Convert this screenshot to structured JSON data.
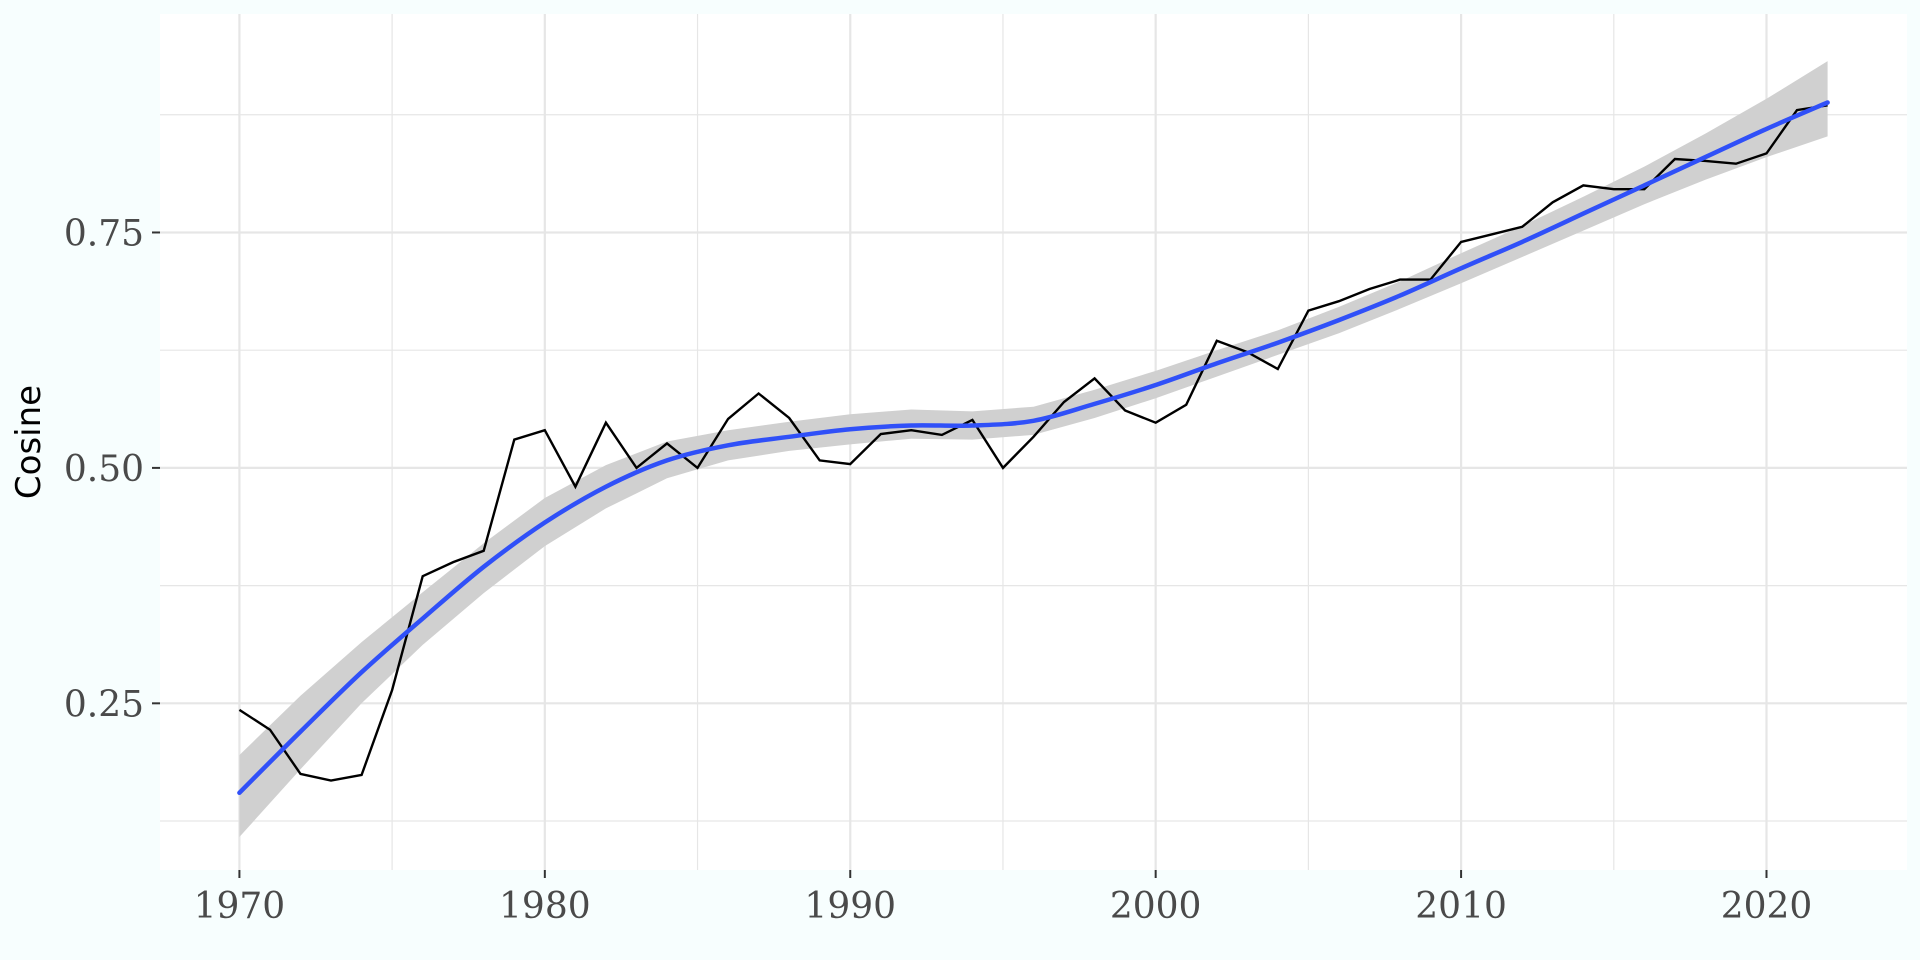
{
  "chart_data": {
    "type": "line",
    "title": "",
    "xlabel": "",
    "ylabel": "Cosine",
    "xlim": [
      1967.4,
      2024.6
    ],
    "ylim": [
      0.073,
      0.982
    ],
    "x_ticks": [
      1970,
      1980,
      1990,
      2000,
      2010,
      2020
    ],
    "x_tick_labels": [
      "1970",
      "1980",
      "1990",
      "2000",
      "2010",
      "2020"
    ],
    "y_ticks": [
      0.25,
      0.5,
      0.75
    ],
    "y_tick_labels": [
      "0.25",
      "0.50",
      "0.75"
    ],
    "grid": true,
    "legend": "none",
    "colors": {
      "background": "#f7fefe",
      "panel": "#ffffff",
      "grid": "#e6e6e6",
      "observed": "#000000",
      "smooth": "#3050f8",
      "ribbon": "#d0d0d0",
      "tick_text": "#4a4a4a"
    },
    "series": [
      {
        "type": "line",
        "x": [
          1970,
          1971,
          1972,
          1973,
          1974,
          1975,
          1976,
          1977,
          1978,
          1979,
          1980,
          1981,
          1982,
          1983,
          1984,
          1985,
          1986,
          1987,
          1988,
          1989,
          1990,
          1991,
          1992,
          1993,
          1994,
          1995,
          1996,
          1997,
          1998,
          1999,
          2000,
          2001,
          2002,
          2003,
          2004,
          2005,
          2006,
          2007,
          2008,
          2009,
          2010,
          2011,
          2012,
          2013,
          2014,
          2015,
          2016,
          2017,
          2018,
          2019,
          2020,
          2021,
          2022
        ],
        "y": [
          0.243,
          0.222,
          0.175,
          0.168,
          0.174,
          0.264,
          0.385,
          0.4,
          0.412,
          0.53,
          0.54,
          0.48,
          0.548,
          0.5,
          0.526,
          0.5,
          0.552,
          0.579,
          0.553,
          0.508,
          0.504,
          0.536,
          0.54,
          0.535,
          0.551,
          0.5,
          0.533,
          0.57,
          0.595,
          0.561,
          0.548,
          0.567,
          0.635,
          0.623,
          0.605,
          0.667,
          0.677,
          0.69,
          0.7,
          0.7,
          0.74,
          0.748,
          0.756,
          0.782,
          0.8,
          0.796,
          0.796,
          0.828,
          0.826,
          0.823,
          0.834,
          0.88,
          0.885
        ]
      },
      {
        "type": "smooth",
        "x": [
          1970,
          1972,
          1974,
          1976,
          1978,
          1980,
          1982,
          1984,
          1986,
          1988,
          1990,
          1992,
          1994,
          1996,
          1998,
          2000,
          2002,
          2004,
          2006,
          2008,
          2010,
          2012,
          2014,
          2016,
          2018,
          2020,
          2022
        ],
        "y": [
          0.155,
          0.22,
          0.283,
          0.34,
          0.395,
          0.442,
          0.48,
          0.508,
          0.524,
          0.533,
          0.541,
          0.545,
          0.545,
          0.55,
          0.568,
          0.588,
          0.611,
          0.633,
          0.657,
          0.683,
          0.712,
          0.74,
          0.77,
          0.8,
          0.83,
          0.86,
          0.888
        ],
        "lower": [
          0.108,
          0.18,
          0.25,
          0.312,
          0.367,
          0.417,
          0.457,
          0.489,
          0.508,
          0.518,
          0.525,
          0.531,
          0.53,
          0.535,
          0.553,
          0.574,
          0.597,
          0.62,
          0.643,
          0.669,
          0.696,
          0.724,
          0.752,
          0.78,
          0.806,
          0.83,
          0.852
        ],
        "upper": [
          0.195,
          0.258,
          0.315,
          0.368,
          0.42,
          0.468,
          0.503,
          0.528,
          0.54,
          0.549,
          0.557,
          0.562,
          0.56,
          0.565,
          0.583,
          0.603,
          0.625,
          0.646,
          0.671,
          0.698,
          0.728,
          0.757,
          0.788,
          0.82,
          0.855,
          0.892,
          0.932
        ]
      }
    ]
  }
}
